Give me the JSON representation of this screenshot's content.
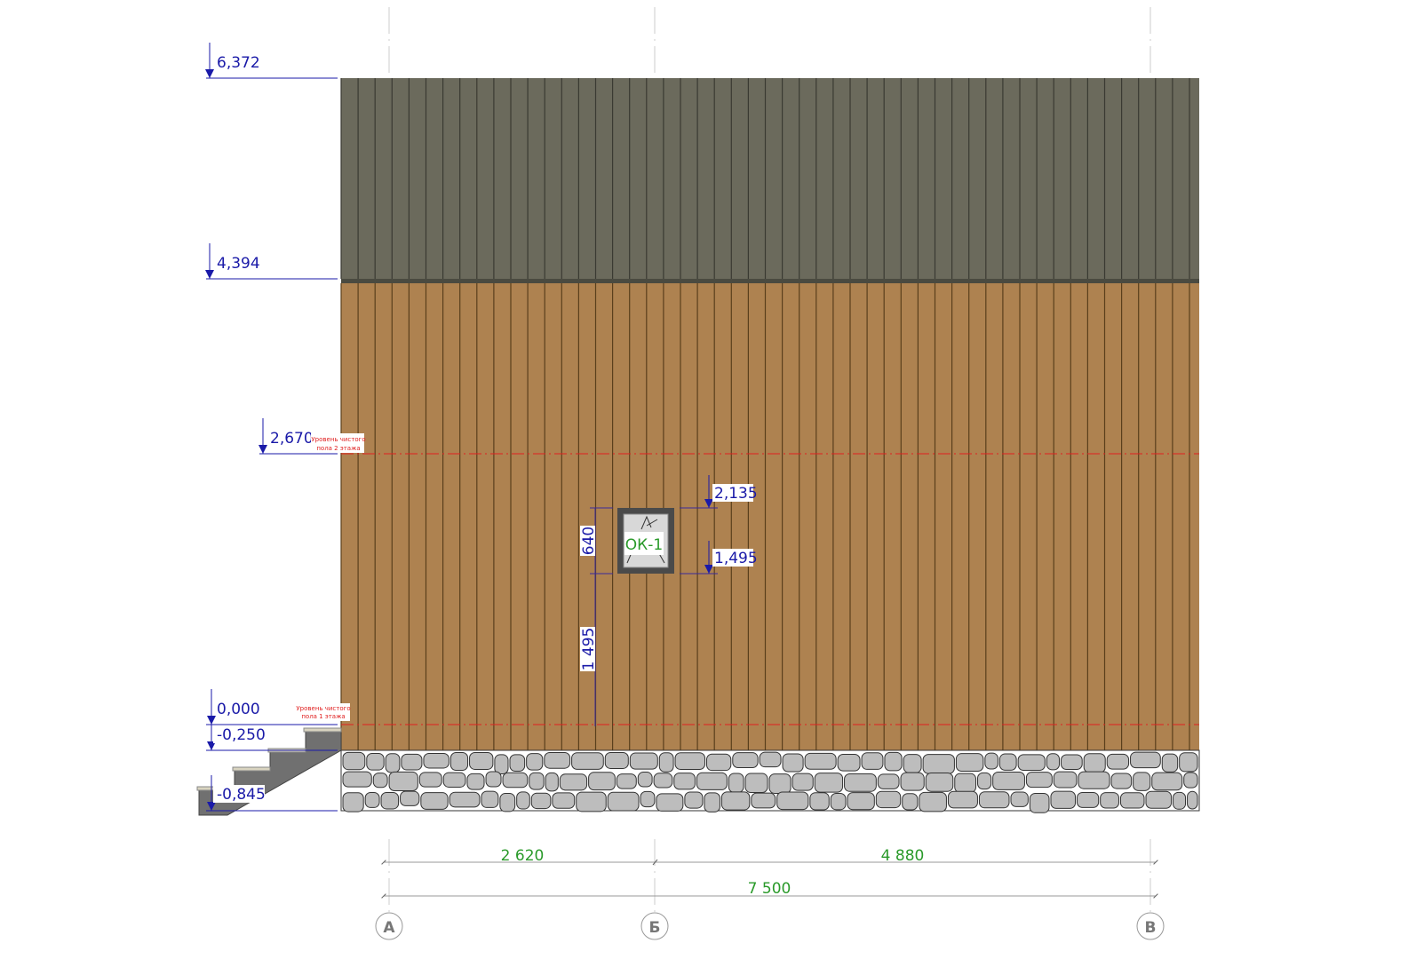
{
  "drawing": {
    "levels": [
      {
        "id": "roof-top",
        "label": "6,372"
      },
      {
        "id": "roof-eave",
        "label": "4,394"
      },
      {
        "id": "floor-2",
        "label": "2,670",
        "note": [
          "Уровень чистого",
          "пола 2 этажа"
        ]
      },
      {
        "id": "floor-1",
        "label": "0,000",
        "note": [
          "Уровень чистого",
          "пола 1 этажа"
        ]
      },
      {
        "id": "ground",
        "label": "-0,250"
      },
      {
        "id": "stair-base",
        "label": "-0,845"
      }
    ],
    "window": {
      "tag": "ОК-1",
      "top_mark": "2,135",
      "bottom_mark": "1,495",
      "height_dim": "640",
      "sill_dim": "1 495"
    },
    "dimensions": {
      "segments": [
        "2 620",
        "4 880"
      ],
      "total": "7 500"
    },
    "axes": [
      "А",
      "Б",
      "В"
    ],
    "colors": {
      "roof": "#6b6a5c",
      "wall": "#ae8250",
      "foundation": "#bdbdbd",
      "level_marks": "#1a1aa8",
      "dimension_text": "#2a9a2a",
      "floor_lines": "#e02020"
    }
  }
}
